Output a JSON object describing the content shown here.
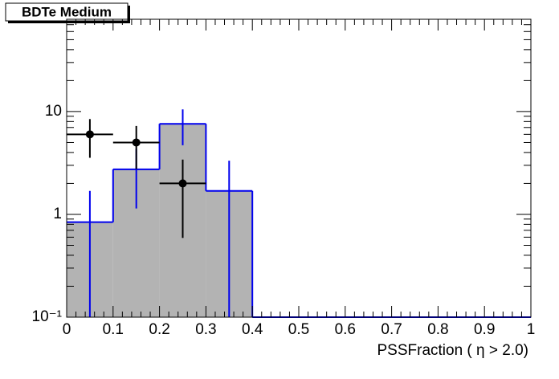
{
  "chart_data": {
    "type": "histogram",
    "title": "BDTe Medium",
    "x_label": "PSSFraction ( η > 2.0)",
    "bins": [
      0,
      0.1,
      0.2,
      0.3,
      0.4,
      0.5,
      0.6,
      0.7,
      0.8,
      0.9,
      1
    ],
    "values": [
      0.84,
      2.74,
      7.6,
      1.69,
      0,
      0,
      0,
      0,
      0,
      0
    ],
    "errors": [
      0.85,
      1.6,
      2.9,
      1.64,
      0,
      0,
      0,
      0,
      0,
      0
    ],
    "color": "#0000ee",
    "fill": "#b3b3b3",
    "points": {
      "x": [
        0.05,
        0.15,
        0.25
      ],
      "values": [
        6,
        5,
        2
      ],
      "errors": [
        2.45,
        2.24,
        1.41
      ],
      "xerr": [
        0.05,
        0.05,
        0.05
      ],
      "color": "#000000"
    },
    "xlim": [
      0,
      1
    ],
    "xticks": [
      0,
      0.1,
      0.2,
      0.3,
      0.4,
      0.5,
      0.6,
      0.7,
      0.8,
      0.9,
      1
    ],
    "ylim": [
      0.1,
      79
    ],
    "yticks": [
      {
        "value": 0.1,
        "label": "10⁻¹"
      },
      1,
      10
    ],
    "log_y": true
  }
}
